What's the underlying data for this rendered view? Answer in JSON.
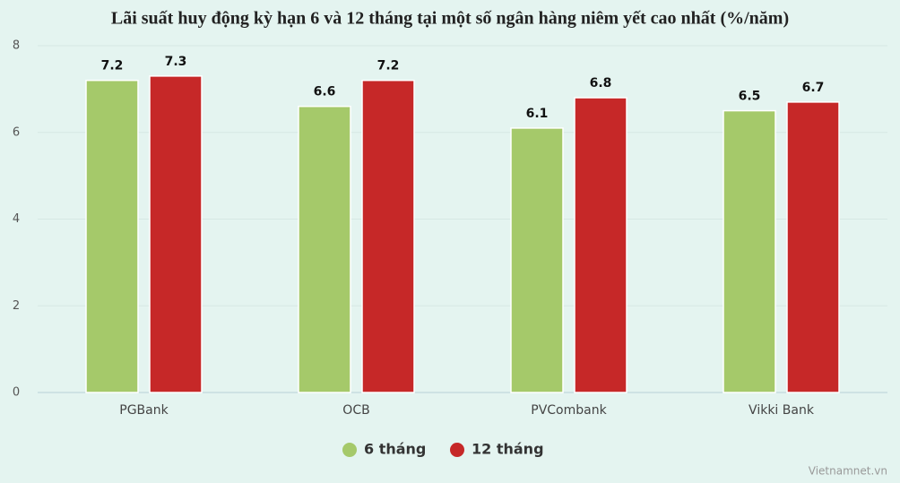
{
  "chart_data": {
    "type": "bar",
    "title": "Lãi suất huy động kỳ hạn 6 và 12 tháng tại một số ngân hàng niêm yết cao nhất (%/năm)",
    "categories": [
      "PGBank",
      "OCB",
      "PVCombank",
      "Vikki Bank"
    ],
    "series": [
      {
        "name": "6 tháng",
        "color": "#a5c96a",
        "values": [
          7.2,
          6.6,
          6.1,
          6.5
        ]
      },
      {
        "name": "12 tháng",
        "color": "#c62828",
        "values": [
          7.3,
          7.2,
          6.8,
          6.7
        ]
      }
    ],
    "ylim": [
      0,
      8
    ],
    "yticks": [
      0,
      2,
      4,
      6,
      8
    ],
    "grid": true,
    "legend": "bottom",
    "credit": "Vietnamnet.vn"
  }
}
